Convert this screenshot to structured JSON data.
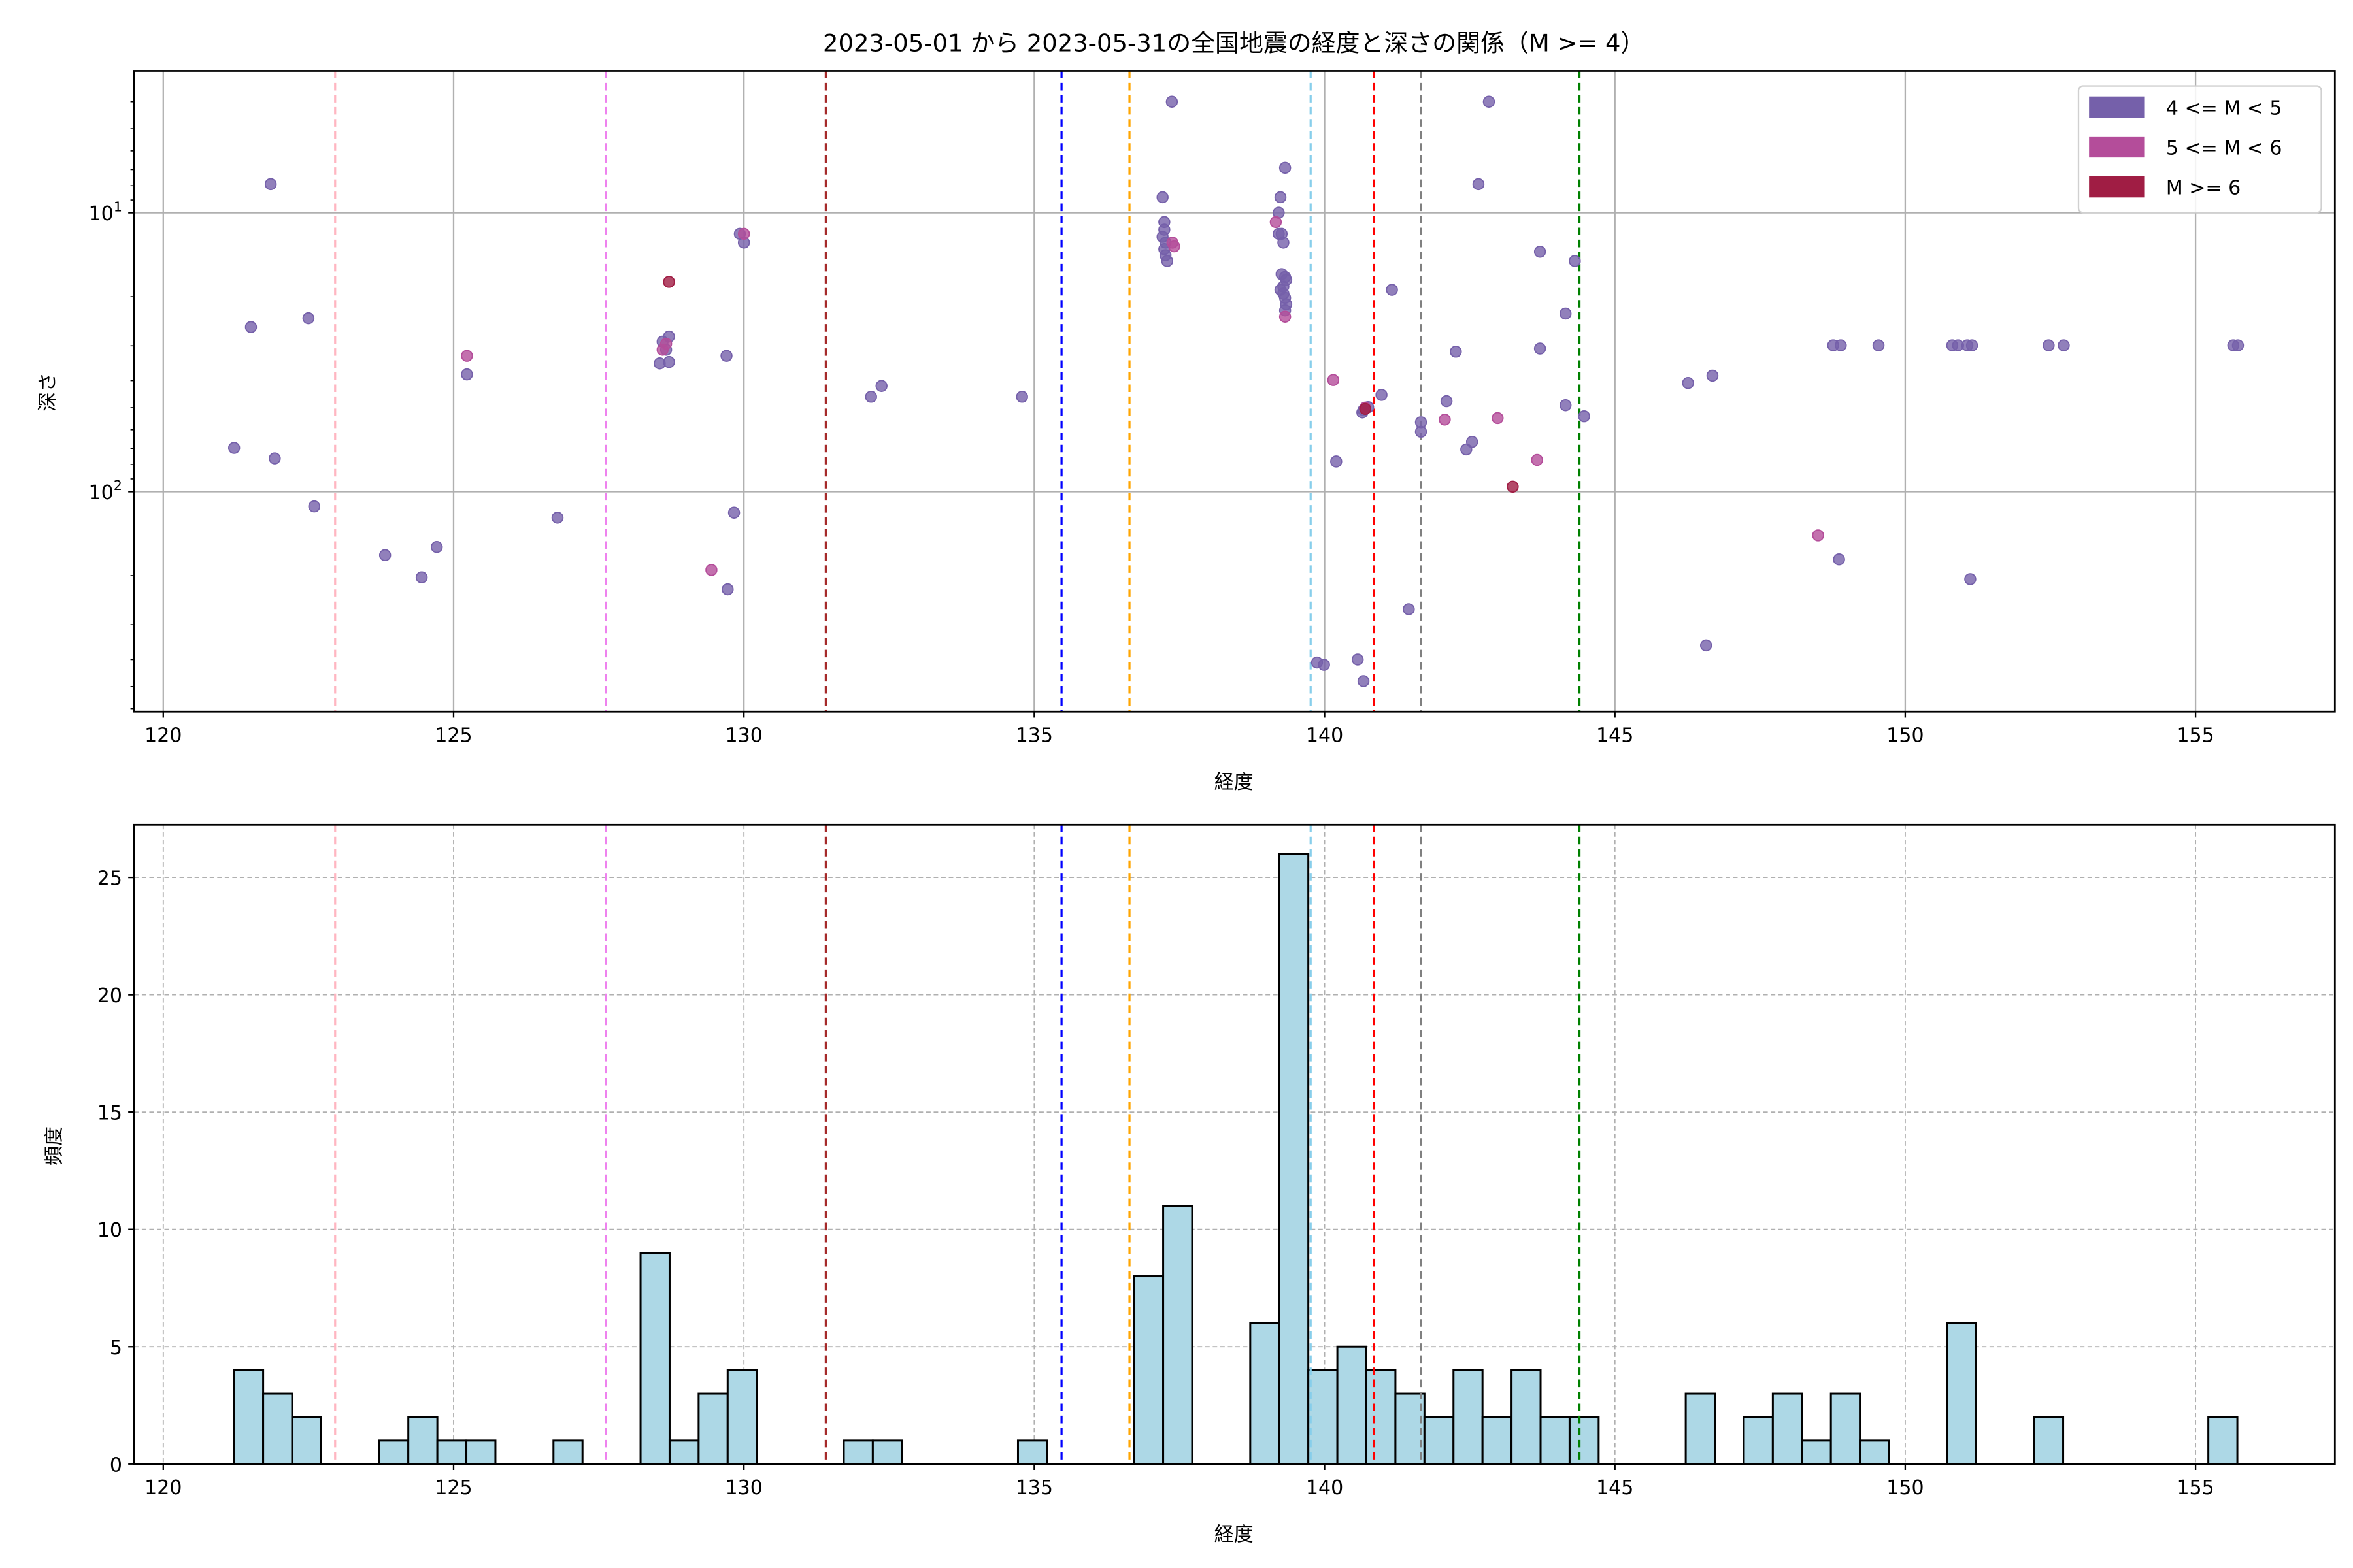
{
  "title": "2023-05-01 から 2023-05-31の全国地震の経度と深さの関係（M >= 4）",
  "colors": {
    "m4": "#7560aa",
    "m5": "#b44d9a",
    "m6": "#a01d44",
    "hist_fill": "#add8e6",
    "hist_edge": "#000000"
  },
  "chart_data": [
    {
      "type": "scatter",
      "xlabel": "経度",
      "ylabel": "深さ",
      "xlim": [
        119.5,
        157.4
      ],
      "ylim": [
        615,
        3.1
      ],
      "yscale": "log",
      "y_inverted": true,
      "xticks": [
        120,
        125,
        130,
        135,
        140,
        145,
        150,
        155
      ],
      "yticks": [
        {
          "value": 10,
          "base": "10",
          "exp": "1"
        },
        {
          "value": 100,
          "base": "10",
          "exp": "2"
        }
      ],
      "grid": true,
      "legend": "top-right",
      "series": [
        {
          "name": "4 <= M < 5",
          "color": "#7560aa",
          "points": [
            [
              121.85,
              7.9
            ],
            [
              121.51,
              25.7
            ],
            [
              122.5,
              23.9
            ],
            [
              121.22,
              69.7
            ],
            [
              121.92,
              76
            ],
            [
              122.6,
              113
            ],
            [
              123.82,
              169
            ],
            [
              124.45,
              203
            ],
            [
              124.71,
              158
            ],
            [
              125.23,
              38
            ],
            [
              126.79,
              124
            ],
            [
              128.55,
              34.7
            ],
            [
              128.66,
              31
            ],
            [
              128.71,
              27.8
            ],
            [
              128.6,
              29
            ],
            [
              128.71,
              34.3
            ],
            [
              129.7,
              32.6
            ],
            [
              129.83,
              119
            ],
            [
              129.72,
              224
            ],
            [
              129.93,
              11.9
            ],
            [
              130.0,
              12.8
            ],
            [
              132.19,
              45.7
            ],
            [
              132.37,
              41.8
            ],
            [
              134.79,
              45.7
            ],
            [
              137.37,
              4
            ],
            [
              137.21,
              8.8
            ],
            [
              137.24,
              10.8
            ],
            [
              137.24,
              11.5
            ],
            [
              137.21,
              12.2
            ],
            [
              137.26,
              12.8
            ],
            [
              137.24,
              13.5
            ],
            [
              137.26,
              14.2
            ],
            [
              137.29,
              14.9
            ],
            [
              139.24,
              8.8
            ],
            [
              139.21,
              10
            ],
            [
              139.32,
              6.9
            ],
            [
              139.29,
              12.8
            ],
            [
              139.26,
              11.9
            ],
            [
              139.21,
              11.9
            ],
            [
              139.26,
              16.6
            ],
            [
              139.32,
              17
            ],
            [
              139.29,
              18.4
            ],
            [
              139.24,
              18.9
            ],
            [
              139.34,
              17.4
            ],
            [
              139.29,
              19.5
            ],
            [
              139.32,
              20.2
            ],
            [
              139.34,
              21.3
            ],
            [
              139.32,
              22.4
            ],
            [
              139.87,
              410
            ],
            [
              139.99,
              418
            ],
            [
              140.2,
              78
            ],
            [
              140.98,
              45
            ],
            [
              140.67,
              51
            ],
            [
              140.75,
              49.8
            ],
            [
              140.65,
              52
            ],
            [
              140.57,
              400
            ],
            [
              140.67,
              478
            ],
            [
              141.16,
              18.9
            ],
            [
              141.45,
              264
            ],
            [
              141.66,
              56.4
            ],
            [
              141.66,
              61
            ],
            [
              142.1,
              47.4
            ],
            [
              142.26,
              31.5
            ],
            [
              142.44,
              70.6
            ],
            [
              142.54,
              66.3
            ],
            [
              142.65,
              7.9
            ],
            [
              142.83,
              4
            ],
            [
              143.71,
              13.8
            ],
            [
              143.71,
              30.7
            ],
            [
              144.15,
              23
            ],
            [
              144.31,
              14.9
            ],
            [
              144.15,
              49
            ],
            [
              144.47,
              53.7
            ],
            [
              146.26,
              40.8
            ],
            [
              146.68,
              38.4
            ],
            [
              146.57,
              356
            ],
            [
              148.76,
              29.9
            ],
            [
              148.89,
              29.9
            ],
            [
              149.54,
              29.9
            ],
            [
              148.86,
              175
            ],
            [
              150.81,
              29.9
            ],
            [
              150.91,
              29.9
            ],
            [
              151.07,
              29.9
            ],
            [
              151.15,
              29.9
            ],
            [
              151.12,
              206
            ],
            [
              152.47,
              29.9
            ],
            [
              152.73,
              29.9
            ],
            [
              155.65,
              29.9
            ],
            [
              155.73,
              29.9
            ]
          ]
        },
        {
          "name": "5 <= M < 6",
          "color": "#b44d9a",
          "points": [
            [
              125.23,
              32.6
            ],
            [
              128.6,
              31
            ],
            [
              128.66,
              29.5
            ],
            [
              129.44,
              191
            ],
            [
              130.0,
              11.9
            ],
            [
              137.38,
              12.8
            ],
            [
              137.41,
              13.2
            ],
            [
              139.16,
              10.8
            ],
            [
              139.32,
              23.6
            ],
            [
              140.15,
              39.8
            ],
            [
              140.7,
              50
            ],
            [
              142.07,
              55.2
            ],
            [
              142.98,
              54.5
            ],
            [
              143.66,
              77
            ],
            [
              148.5,
              143.5
            ]
          ]
        },
        {
          "name": "M >= 6",
          "color": "#a01d44",
          "points": [
            [
              128.71,
              17.7
            ],
            [
              140.7,
              50.5
            ],
            [
              143.24,
              96
            ]
          ]
        }
      ],
      "reference_lines": [
        {
          "x": 122.96,
          "color": "#ffb6c1"
        },
        {
          "x": 127.62,
          "color": "#ee82ee"
        },
        {
          "x": 131.41,
          "color": "#a52a2a"
        },
        {
          "x": 135.47,
          "color": "#0000ff"
        },
        {
          "x": 136.64,
          "color": "#ffa500"
        },
        {
          "x": 139.76,
          "color": "#87ceeb"
        },
        {
          "x": 140.85,
          "color": "#ff0000"
        },
        {
          "x": 141.66,
          "color": "#808080"
        },
        {
          "x": 144.39,
          "color": "#008000"
        }
      ]
    },
    {
      "type": "bar",
      "subtype": "histogram",
      "xlabel": "経度",
      "ylabel": "頻度",
      "xlim": [
        119.5,
        157.4
      ],
      "ylim": [
        0,
        27.25
      ],
      "xticks": [
        120,
        125,
        130,
        135,
        140,
        145,
        150,
        155
      ],
      "yticks": [
        0,
        5,
        10,
        15,
        20,
        25
      ],
      "grid": true,
      "bin_start": 121.22,
      "bin_width": 0.5,
      "bins": [
        [
          121.22,
          4
        ],
        [
          121.72,
          3
        ],
        [
          122.22,
          2
        ],
        [
          123.72,
          1
        ],
        [
          124.22,
          2
        ],
        [
          124.72,
          1
        ],
        [
          125.22,
          1
        ],
        [
          126.72,
          1
        ],
        [
          128.22,
          9
        ],
        [
          128.72,
          1
        ],
        [
          129.22,
          3
        ],
        [
          129.72,
          4
        ],
        [
          131.72,
          1
        ],
        [
          132.22,
          1
        ],
        [
          134.72,
          1
        ],
        [
          136.72,
          8
        ],
        [
          137.22,
          11
        ],
        [
          138.72,
          6
        ],
        [
          139.22,
          26
        ],
        [
          139.72,
          4
        ],
        [
          140.22,
          5
        ],
        [
          140.72,
          4
        ],
        [
          141.22,
          3
        ],
        [
          141.72,
          2
        ],
        [
          142.22,
          4
        ],
        [
          142.72,
          2
        ],
        [
          143.22,
          4
        ],
        [
          143.72,
          2
        ],
        [
          144.22,
          2
        ],
        [
          146.22,
          3
        ],
        [
          147.22,
          2
        ],
        [
          147.72,
          3
        ],
        [
          148.22,
          1
        ],
        [
          148.72,
          3
        ],
        [
          149.22,
          1
        ],
        [
          150.72,
          6
        ],
        [
          152.22,
          2
        ],
        [
          155.22,
          2
        ]
      ],
      "reference_lines": [
        {
          "x": 122.96,
          "color": "#ffb6c1"
        },
        {
          "x": 127.62,
          "color": "#ee82ee"
        },
        {
          "x": 131.41,
          "color": "#a52a2a"
        },
        {
          "x": 135.47,
          "color": "#0000ff"
        },
        {
          "x": 136.64,
          "color": "#ffa500"
        },
        {
          "x": 139.76,
          "color": "#87ceeb"
        },
        {
          "x": 140.85,
          "color": "#ff0000"
        },
        {
          "x": 141.66,
          "color": "#808080"
        },
        {
          "x": 144.39,
          "color": "#008000"
        }
      ]
    }
  ]
}
